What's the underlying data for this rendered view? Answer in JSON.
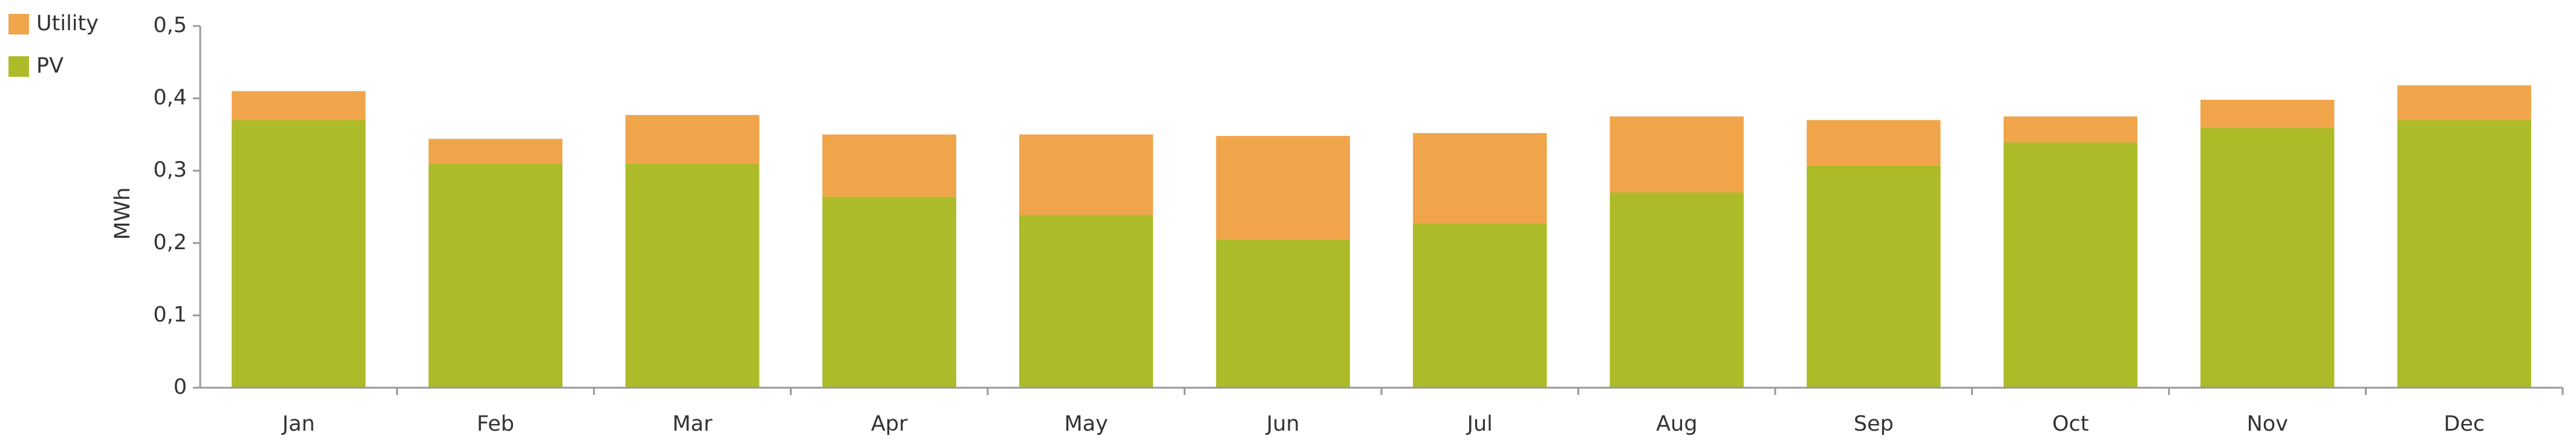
{
  "chart_data": {
    "type": "stacked-bar",
    "y_label": "MWh",
    "categories": [
      "Jan",
      "Feb",
      "Mar",
      "Apr",
      "May",
      "Jun",
      "Jul",
      "Aug",
      "Sep",
      "Oct",
      "Nov",
      "Dec"
    ],
    "series": [
      {
        "name": "PV",
        "color": "#acbb27",
        "values": [
          0.37,
          0.31,
          0.31,
          0.264,
          0.239,
          0.205,
          0.227,
          0.27,
          0.307,
          0.339,
          0.359,
          0.37
        ]
      },
      {
        "name": "Utility",
        "color": "#f0a54b",
        "values": [
          0.04,
          0.034,
          0.067,
          0.086,
          0.111,
          0.143,
          0.125,
          0.105,
          0.063,
          0.036,
          0.039,
          0.048
        ]
      }
    ],
    "ylim": [
      0,
      0.5
    ],
    "yticks": [
      0,
      {
        "value": 0.1,
        "label": "0,1"
      },
      {
        "value": 0.2,
        "label": "0,2"
      },
      {
        "value": 0.3,
        "label": "0,3"
      },
      {
        "value": 0.4,
        "label": "0,4"
      },
      {
        "value": 0.5,
        "label": "0,5"
      }
    ],
    "legend": "top-left"
  }
}
